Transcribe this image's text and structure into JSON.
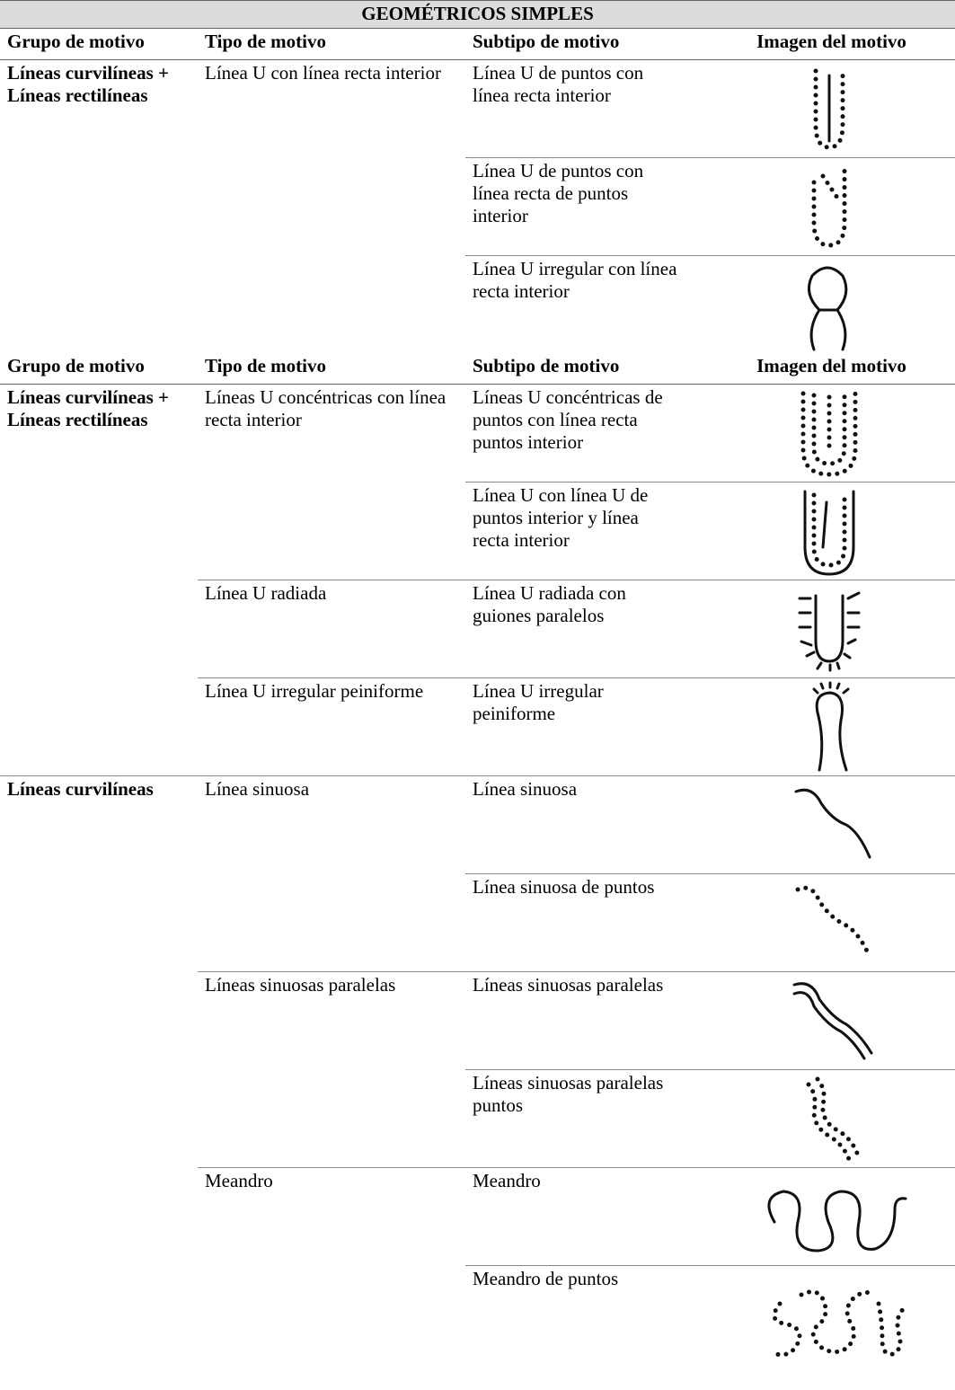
{
  "title": "GEOMÉTRICOS SIMPLES",
  "sections": [
    {
      "header": [
        "Grupo de motivo",
        "Tipo de motivo",
        "Subtipo de motivo",
        "Imagen del motivo"
      ],
      "groups": [
        {
          "group": "Líneas curvilíneas + Líneas rectilíneas",
          "types": [
            {
              "type": "Línea U con línea recta interior",
              "subtypes": [
                "Línea U de puntos con línea recta interior",
                "Línea U de puntos con línea recta de puntos interior",
                "Línea U irregular con línea recta interior"
              ]
            }
          ]
        }
      ]
    },
    {
      "header": [
        "Grupo de motivo",
        "Tipo de motivo",
        "Subtipo de motivo",
        "Imagen del motivo"
      ],
      "groups": [
        {
          "group": "Líneas curvilíneas + Líneas rectilíneas",
          "types": [
            {
              "type": "Líneas U concéntricas con línea recta interior",
              "subtypes": [
                "Líneas U concéntricas de puntos con línea recta puntos interior",
                "Línea U con línea U de puntos interior y línea recta interior"
              ]
            },
            {
              "type": "Línea U radiada",
              "subtypes": [
                "Línea U radiada con guiones paralelos"
              ]
            },
            {
              "type": "Línea U irregular peiniforme",
              "subtypes": [
                "Línea U irregular peiniforme"
              ]
            }
          ]
        },
        {
          "group": "Líneas curvilíneas",
          "types": [
            {
              "type": "Línea sinuosa",
              "subtypes": [
                "Línea sinuosa",
                "Línea sinuosa de puntos"
              ]
            },
            {
              "type": "Líneas sinuosas paralelas",
              "subtypes": [
                "Líneas sinuosas paralelas",
                "Líneas sinuosas paralelas puntos"
              ]
            },
            {
              "type": "Meandro",
              "subtypes": [
                "Meandro",
                "Meandro de puntos"
              ]
            }
          ]
        }
      ]
    }
  ]
}
